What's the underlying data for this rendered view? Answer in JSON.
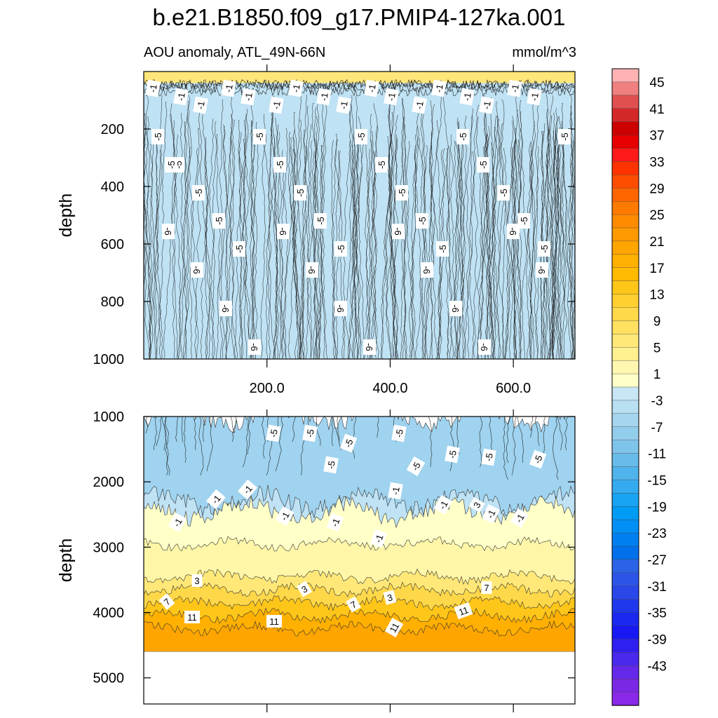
{
  "title": "b.e21.B1850.f09_g17.PMIP4-127ka.001",
  "subtitle_left": "AOU anomaly, ATL_49N-66N",
  "subtitle_right": "mmol/m^3",
  "chart_data": {
    "type": "contour",
    "variable": "AOU anomaly",
    "region": "ATL_49N-66N",
    "units": "mmol/m^3",
    "x": {
      "ticks": [
        200,
        400,
        600
      ],
      "tick_labels": [
        "200.0",
        "400.0",
        "600.0"
      ],
      "range": [
        0,
        700
      ]
    },
    "panels": [
      {
        "name": "upper",
        "ylabel": "depth",
        "yrange": [
          0,
          1000
        ],
        "yticks": [
          200,
          400,
          600,
          800,
          1000
        ],
        "ytick_labels": [
          "200",
          "400",
          "600",
          "800",
          "1000"
        ],
        "description_levels": {
          "surface_0_50": 1,
          "50_150": -1,
          "150_1000": -5
        },
        "contour_labels": [
          "-1",
          "-1",
          "-1",
          "-1",
          "-1",
          "-1",
          "-1",
          "-1",
          "-1",
          "-1",
          "-1",
          "-1",
          "-1",
          "-1",
          "-1",
          "-1",
          "-1",
          "-5",
          "-5",
          "-5",
          "-5",
          "-5",
          "-5",
          "-5",
          "-5",
          "-5",
          "-5",
          "-5",
          "-5",
          "-5",
          "-5",
          "-5",
          "-5",
          "-5",
          "-5",
          "-5",
          "-5",
          "-5",
          "-5",
          "-6",
          "-6",
          "-6",
          "-6",
          "-6",
          "-6",
          "-6",
          "-6",
          "-6",
          "-6",
          "-6",
          "-6",
          "-6",
          "-6"
        ]
      },
      {
        "name": "lower",
        "ylabel": "depth",
        "yrange": [
          1000,
          5400
        ],
        "yticks": [
          1000,
          2000,
          3000,
          4000,
          5000
        ],
        "ytick_labels": [
          "1000",
          "2000",
          "3000",
          "4000",
          "5000"
        ],
        "data_bottom_depth": 4600,
        "description_levels": {
          "1000_2300": -5,
          "2300_2800": -1,
          "2800_3400": 1,
          "3400_3900": 3,
          "3900_4300": 7,
          "4300_4600": 11
        },
        "contour_labels": [
          "-5",
          "-5",
          "-5",
          "-5",
          "-5",
          "-5",
          "-5",
          "-5",
          "-5",
          "-1",
          "-1",
          "-1",
          "-1",
          "-1",
          "-1",
          "-1",
          "-1",
          "-1",
          "-1",
          "3",
          "3",
          "3",
          "3",
          "7",
          "7",
          "7",
          "11",
          "11",
          "11",
          "11"
        ]
      }
    ],
    "colorbar": {
      "labels": [
        "45",
        "41",
        "37",
        "33",
        "29",
        "25",
        "21",
        "17",
        "13",
        "9",
        "5",
        "1",
        "-3",
        "-7",
        "-11",
        "-15",
        "-19",
        "-23",
        "-27",
        "-31",
        "-35",
        "-39",
        "-43"
      ],
      "colors": [
        "#ffb3b3",
        "#f08080",
        "#e05050",
        "#d42828",
        "#cc0000",
        "#e60000",
        "#ff1a1a",
        "#ff3300",
        "#ff4d00",
        "#ff6600",
        "#ff7a00",
        "#ff8c00",
        "#ff9900",
        "#ffa500",
        "#ffb000",
        "#ffbb00",
        "#ffc61a",
        "#ffd030",
        "#ffd94a",
        "#ffe060",
        "#ffe878",
        "#fff090",
        "#fff7b0",
        "#ffffc8",
        "#c8e6f5",
        "#b8dff2",
        "#a6d6ef",
        "#93cdec",
        "#7fc4ea",
        "#68bcea",
        "#4fb3ec",
        "#35abef",
        "#1aa3f2",
        "#009bf5",
        "#0090f5",
        "#0080f0",
        "#0070eb",
        "#2a63e6",
        "#2c55e8",
        "#2a47ea",
        "#2038ec",
        "#1a28f0",
        "#1818f5",
        "#3020f0",
        "#4a28ec",
        "#6428e8",
        "#7a28e4",
        "#8a28e8"
      ]
    }
  }
}
